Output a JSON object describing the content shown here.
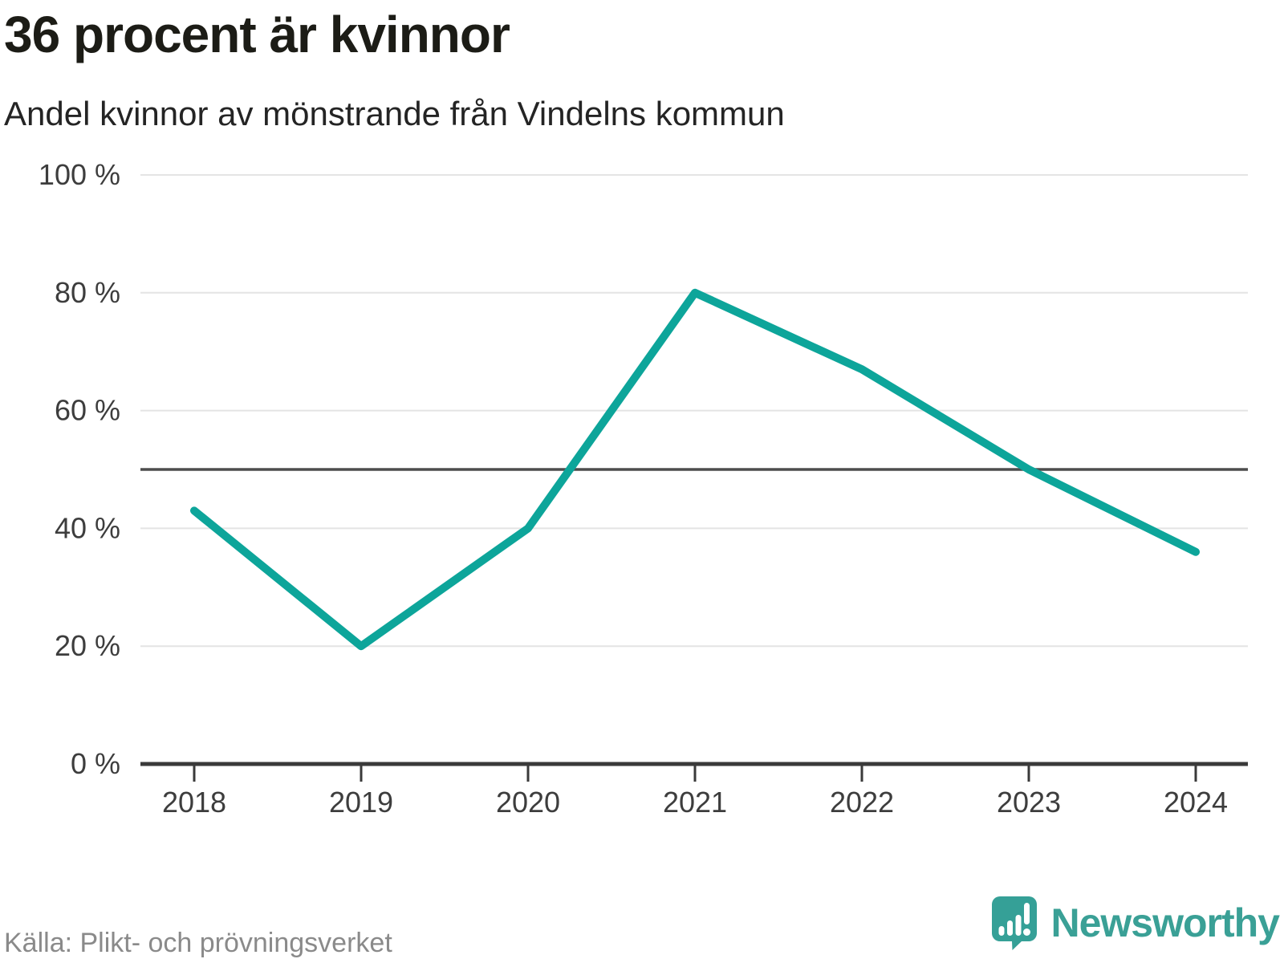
{
  "source": "Källa: Plikt- och prövningsverket",
  "branding": {
    "name": "Newsworthy",
    "icon": "newsworthy-pin-chart-icon",
    "brand_color": "#3aa096"
  },
  "colors": {
    "line": "#0da59a",
    "grid": "#e4e4e4",
    "reference_line": "#4d4d4d",
    "axis": "#3a3a3a",
    "tick_label": "#3d3d3d",
    "title": "#1c1c16",
    "source_text": "#8a8a8a"
  },
  "chart_data": {
    "type": "line",
    "title": "36 procent är kvinnor",
    "subtitle": "Andel kvinnor av mönstrande från Vindelns kommun",
    "categories": [
      "2018",
      "2019",
      "2020",
      "2021",
      "2022",
      "2023",
      "2024"
    ],
    "series": [
      {
        "name": "Andel kvinnor av mönstrande",
        "values": [
          43,
          20,
          40,
          80,
          67,
          50,
          36
        ]
      }
    ],
    "xlabel": "",
    "ylabel": "",
    "ylim": [
      0,
      100
    ],
    "yticks": [
      0,
      20,
      40,
      60,
      80,
      100
    ],
    "ytick_labels": [
      "0 %",
      "20 %",
      "40 %",
      "60 %",
      "80 %",
      "100 %"
    ],
    "ytick_suffix": " %",
    "reference_line": 50,
    "grid": true,
    "legend": false
  }
}
